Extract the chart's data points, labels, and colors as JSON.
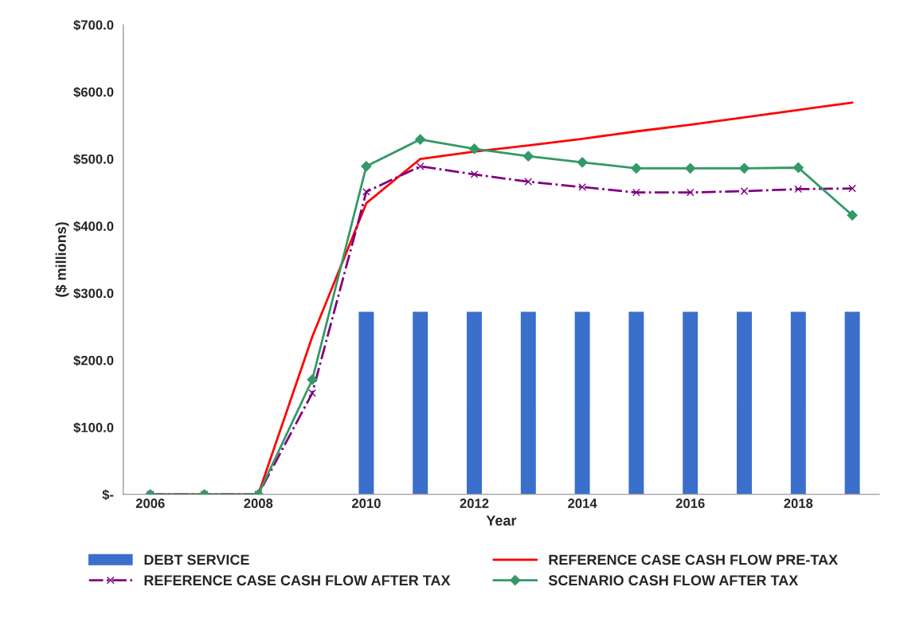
{
  "chart_data": {
    "type": "line",
    "xlabel": "Year",
    "ylabel": "($ millions)",
    "categories": [
      "2006",
      null,
      "2008",
      null,
      "2010",
      null,
      "2012",
      null,
      "2014",
      null,
      "2016",
      null,
      "2018",
      null
    ],
    "series": [
      {
        "name": "DEBT SERVICE",
        "type": "bar",
        "color": "#3a6fcc",
        "values": [
          null,
          null,
          null,
          null,
          273,
          273,
          273,
          273,
          273,
          273,
          273,
          273,
          273,
          273
        ]
      },
      {
        "name": "REFERENCE CASE CASH FLOW PRE-TAX",
        "color": "#ff0000",
        "marker": "none",
        "line_style": "solid",
        "values": [
          0,
          0,
          0,
          235,
          434,
          500,
          511,
          520,
          530,
          541,
          551,
          562,
          573,
          584
        ]
      },
      {
        "name": "REFERENCE CASE CASH FLOW AFTER TAX",
        "color": "#800080",
        "marker": "cross",
        "line_style": "dashed",
        "values": [
          0,
          0,
          0,
          151,
          451,
          489,
          477,
          466,
          458,
          450,
          450,
          452,
          455,
          456
        ]
      },
      {
        "name": "SCENARIO CASH FLOW AFTER TAX",
        "color": "#339966",
        "marker": "diamond",
        "line_style": "solid",
        "values": [
          0,
          0,
          0,
          171,
          489,
          529,
          515,
          504,
          495,
          486,
          486,
          486,
          487,
          416
        ]
      }
    ],
    "ylim": [
      0,
      700
    ],
    "yticks": [
      {
        "value": 0,
        "label": "$-"
      },
      {
        "value": 100,
        "label": "$100.0"
      },
      {
        "value": 200,
        "label": "$200.0"
      },
      {
        "value": 300,
        "label": "$300.0"
      },
      {
        "value": 400,
        "label": "$400.0"
      },
      {
        "value": 500,
        "label": "$500.0"
      },
      {
        "value": 600,
        "label": "$600.0"
      },
      {
        "value": 700,
        "label": "$700.0"
      }
    ],
    "grid": false,
    "legend": "bottom"
  }
}
